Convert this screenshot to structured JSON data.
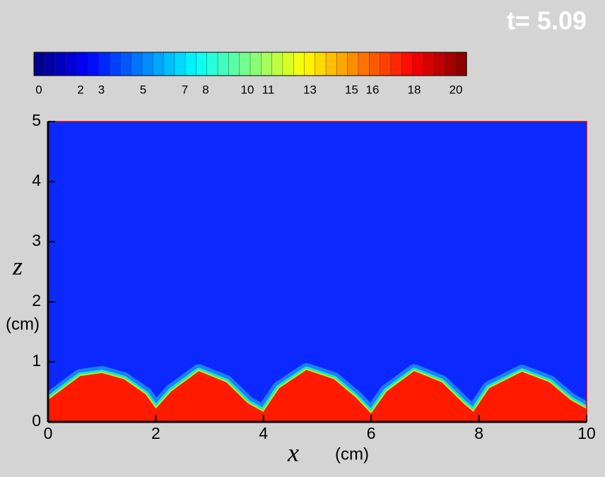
{
  "chart_data": {
    "type": "contour",
    "title": "t= 5.09",
    "colorbar_lim": [
      0,
      20
    ],
    "colorbar_ticks": [
      0,
      2,
      3,
      5,
      7,
      8,
      10,
      11,
      13,
      15,
      16,
      18,
      20
    ],
    "xlabel": "x",
    "xunit": "(cm)",
    "ylabel": "z",
    "yunit": "(cm)",
    "xlim": [
      0,
      10
    ],
    "ylim": [
      0,
      5
    ],
    "xticks": [
      0,
      2,
      4,
      6,
      8,
      10
    ],
    "yticks": [
      0,
      1,
      2,
      3,
      4,
      5
    ],
    "background_color": "#0a28ff",
    "color": "#ff1a00",
    "x": [
      0,
      0.3,
      0.6,
      1,
      1.4,
      1.8,
      2.0,
      2.3,
      2.8,
      3.3,
      3.7,
      4.0,
      4.3,
      4.8,
      5.3,
      5.7,
      6.0,
      6.3,
      6.8,
      7.3,
      7.7,
      7.9,
      8.2,
      8.8,
      9.3,
      9.7,
      10
    ],
    "values": [
      0.35,
      0.55,
      0.75,
      0.8,
      0.7,
      0.45,
      0.2,
      0.5,
      0.83,
      0.65,
      0.3,
      0.15,
      0.55,
      0.85,
      0.7,
      0.4,
      0.12,
      0.5,
      0.83,
      0.65,
      0.3,
      0.15,
      0.55,
      0.82,
      0.65,
      0.35,
      0.2
    ]
  }
}
